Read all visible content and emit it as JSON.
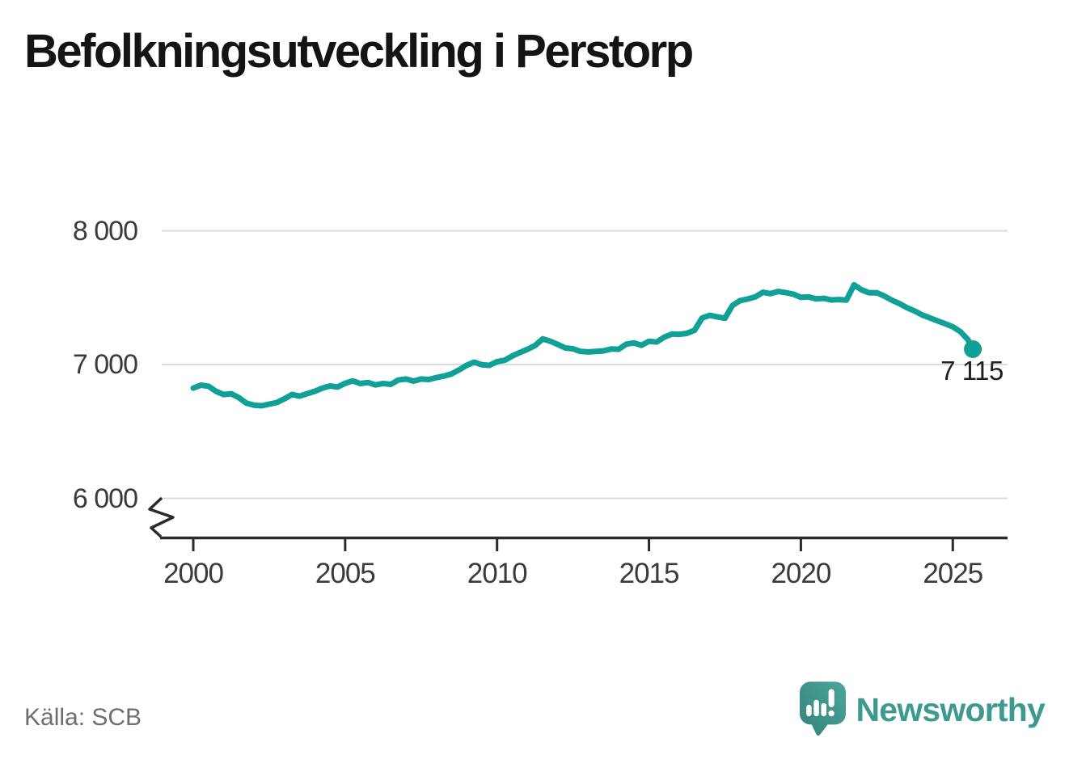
{
  "title": "Befolkningsutveckling i Perstorp",
  "source": "Källa: SCB",
  "branding": {
    "name": "Newsworthy",
    "logo_icon": "speech-bubble-bar-chart-exclamation"
  },
  "annotation": {
    "last_value_label": "7 115"
  },
  "colors": {
    "line": "#10a096",
    "dot": "#10a096",
    "grid": "#dcdcdc",
    "axis": "#2b2b2b",
    "tick_text": "#3b3b3b",
    "title_text": "#141414",
    "muted_text": "#6e6e6e",
    "brand_teal": "#3e998f",
    "logo_fill_light": "#4ba59b",
    "logo_fill_dark": "#33837b"
  },
  "chart_data": {
    "type": "line",
    "title": "Befolkningsutveckling i Perstorp",
    "xlabel": "",
    "ylabel": "",
    "grid": "horizontal",
    "axis_break_at_bottom": true,
    "x_ticks": [
      2000,
      2005,
      2010,
      2015,
      2020,
      2025
    ],
    "x_tick_labels": [
      "2000",
      "2005",
      "2010",
      "2015",
      "2020",
      "2025"
    ],
    "y_ticks": [
      6000,
      7000,
      8000
    ],
    "y_tick_labels": [
      "6 000",
      "7 000",
      "8 000"
    ],
    "xlim": [
      1999.0,
      2026.8
    ],
    "ylim": [
      6000,
      8000
    ],
    "last_point": {
      "x": 2025.66,
      "y": 7115,
      "label": "7 115"
    },
    "points": [
      [
        2000.0,
        6824
      ],
      [
        2000.25,
        6846
      ],
      [
        2000.5,
        6838
      ],
      [
        2000.75,
        6800
      ],
      [
        2001.0,
        6776
      ],
      [
        2001.25,
        6782
      ],
      [
        2001.5,
        6752
      ],
      [
        2001.75,
        6712
      ],
      [
        2002.0,
        6696
      ],
      [
        2002.25,
        6692
      ],
      [
        2002.5,
        6704
      ],
      [
        2002.75,
        6716
      ],
      [
        2003.0,
        6744
      ],
      [
        2003.25,
        6776
      ],
      [
        2003.5,
        6764
      ],
      [
        2003.75,
        6782
      ],
      [
        2004.0,
        6800
      ],
      [
        2004.25,
        6824
      ],
      [
        2004.5,
        6840
      ],
      [
        2004.75,
        6832
      ],
      [
        2005.0,
        6860
      ],
      [
        2005.25,
        6878
      ],
      [
        2005.5,
        6858
      ],
      [
        2005.75,
        6866
      ],
      [
        2006.0,
        6848
      ],
      [
        2006.25,
        6858
      ],
      [
        2006.5,
        6852
      ],
      [
        2006.75,
        6884
      ],
      [
        2007.0,
        6892
      ],
      [
        2007.25,
        6876
      ],
      [
        2007.5,
        6892
      ],
      [
        2007.75,
        6888
      ],
      [
        2008.0,
        6902
      ],
      [
        2008.25,
        6914
      ],
      [
        2008.5,
        6930
      ],
      [
        2008.75,
        6960
      ],
      [
        2009.0,
        6994
      ],
      [
        2009.25,
        7018
      ],
      [
        2009.5,
        6998
      ],
      [
        2009.75,
        6994
      ],
      [
        2010.0,
        7022
      ],
      [
        2010.25,
        7032
      ],
      [
        2010.5,
        7064
      ],
      [
        2010.75,
        7090
      ],
      [
        2011.0,
        7114
      ],
      [
        2011.25,
        7142
      ],
      [
        2011.5,
        7192
      ],
      [
        2011.75,
        7174
      ],
      [
        2012.0,
        7150
      ],
      [
        2012.25,
        7124
      ],
      [
        2012.5,
        7118
      ],
      [
        2012.75,
        7098
      ],
      [
        2013.0,
        7094
      ],
      [
        2013.25,
        7098
      ],
      [
        2013.5,
        7102
      ],
      [
        2013.75,
        7116
      ],
      [
        2014.0,
        7114
      ],
      [
        2014.25,
        7152
      ],
      [
        2014.5,
        7162
      ],
      [
        2014.75,
        7144
      ],
      [
        2015.0,
        7174
      ],
      [
        2015.25,
        7168
      ],
      [
        2015.5,
        7204
      ],
      [
        2015.75,
        7228
      ],
      [
        2016.0,
        7226
      ],
      [
        2016.25,
        7233
      ],
      [
        2016.5,
        7256
      ],
      [
        2016.75,
        7348
      ],
      [
        2017.0,
        7368
      ],
      [
        2017.25,
        7356
      ],
      [
        2017.5,
        7346
      ],
      [
        2017.75,
        7442
      ],
      [
        2018.0,
        7478
      ],
      [
        2018.25,
        7490
      ],
      [
        2018.5,
        7506
      ],
      [
        2018.75,
        7540
      ],
      [
        2019.0,
        7530
      ],
      [
        2019.25,
        7546
      ],
      [
        2019.5,
        7538
      ],
      [
        2019.75,
        7526
      ],
      [
        2020.0,
        7502
      ],
      [
        2020.25,
        7506
      ],
      [
        2020.5,
        7491
      ],
      [
        2020.75,
        7495
      ],
      [
        2021.0,
        7483
      ],
      [
        2021.25,
        7486
      ],
      [
        2021.5,
        7482
      ],
      [
        2021.75,
        7596
      ],
      [
        2022.0,
        7558
      ],
      [
        2022.25,
        7536
      ],
      [
        2022.5,
        7537
      ],
      [
        2022.75,
        7512
      ],
      [
        2023.0,
        7481
      ],
      [
        2023.25,
        7455
      ],
      [
        2023.5,
        7424
      ],
      [
        2023.75,
        7400
      ],
      [
        2024.0,
        7370
      ],
      [
        2024.25,
        7348
      ],
      [
        2024.5,
        7326
      ],
      [
        2024.75,
        7305
      ],
      [
        2025.0,
        7282
      ],
      [
        2025.25,
        7246
      ],
      [
        2025.5,
        7185
      ],
      [
        2025.66,
        7115
      ]
    ]
  }
}
